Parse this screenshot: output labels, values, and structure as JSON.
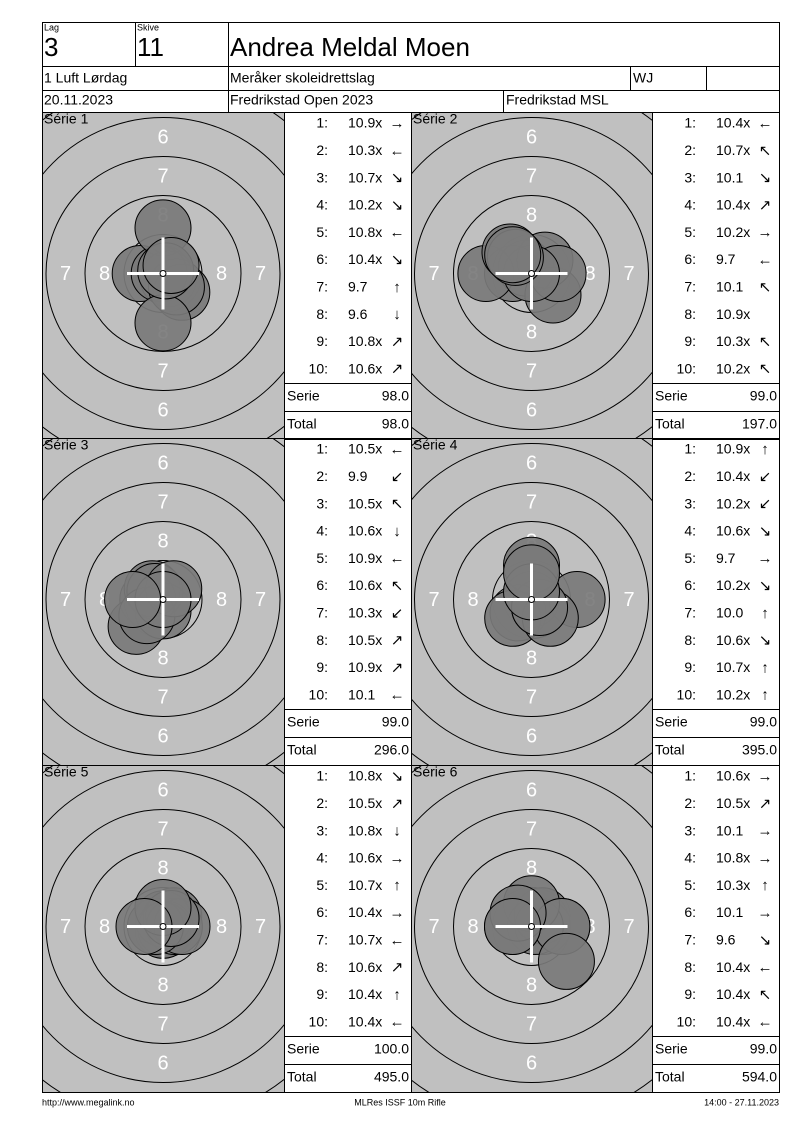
{
  "header": {
    "lag_label": "Lag",
    "lag": "3",
    "skive_label": "Skive",
    "skive": "11",
    "name": "Andrea Meldal Moen",
    "class": "1 Luft Lørdag",
    "club": "Meråker skoleidrettslag",
    "category": "WJ",
    "date": "20.11.2023",
    "event": "Fredrikstad Open 2023",
    "venue": "Fredrikstad MSL"
  },
  "ring_labels": [
    "8",
    "7",
    "6"
  ],
  "labels": {
    "serie": "Serie",
    "total": "Total"
  },
  "series": [
    {
      "name": "Série 1",
      "serie": "98.0",
      "total": "98.0",
      "shots": [
        {
          "no": "1:",
          "score": "10.9x",
          "dir": "→"
        },
        {
          "no": "2:",
          "score": "10.3x",
          "dir": "←"
        },
        {
          "no": "3:",
          "score": "10.7x",
          "dir": "↘"
        },
        {
          "no": "4:",
          "score": "10.2x",
          "dir": "↘"
        },
        {
          "no": "5:",
          "score": "10.8x",
          "dir": "←"
        },
        {
          "no": "6:",
          "score": "10.4x",
          "dir": "↘"
        },
        {
          "no": "7:",
          "score": "9.7",
          "dir": "↑"
        },
        {
          "no": "8:",
          "score": "9.6",
          "dir": "↓"
        },
        {
          "no": "9:",
          "score": "10.8x",
          "dir": "↗"
        },
        {
          "no": "10:",
          "score": "10.6x",
          "dir": "↗"
        }
      ]
    },
    {
      "name": "Série 2",
      "serie": "99.0",
      "total": "197.0",
      "shots": [
        {
          "no": "1:",
          "score": "10.4x",
          "dir": "←"
        },
        {
          "no": "2:",
          "score": "10.7x",
          "dir": "↖"
        },
        {
          "no": "3:",
          "score": "10.1",
          "dir": "↘"
        },
        {
          "no": "4:",
          "score": "10.4x",
          "dir": "↗"
        },
        {
          "no": "5:",
          "score": "10.2x",
          "dir": "→"
        },
        {
          "no": "6:",
          "score": "9.7",
          "dir": "←"
        },
        {
          "no": "7:",
          "score": "10.1",
          "dir": "↖"
        },
        {
          "no": "8:",
          "score": "10.9x"
        },
        {
          "no": "9:",
          "score": "10.3x",
          "dir": "↖"
        },
        {
          "no": "10:",
          "score": "10.2x",
          "dir": "↖"
        }
      ]
    },
    {
      "name": "Série 3",
      "serie": "99.0",
      "total": "296.0",
      "shots": [
        {
          "no": "1:",
          "score": "10.5x",
          "dir": "←"
        },
        {
          "no": "2:",
          "score": "9.9",
          "dir": "↙"
        },
        {
          "no": "3:",
          "score": "10.5x",
          "dir": "↖"
        },
        {
          "no": "4:",
          "score": "10.6x",
          "dir": "↓"
        },
        {
          "no": "5:",
          "score": "10.9x",
          "dir": "←"
        },
        {
          "no": "6:",
          "score": "10.6x",
          "dir": "↖"
        },
        {
          "no": "7:",
          "score": "10.3x",
          "dir": "↙"
        },
        {
          "no": "8:",
          "score": "10.5x",
          "dir": "↗"
        },
        {
          "no": "9:",
          "score": "10.9x",
          "dir": "↗"
        },
        {
          "no": "10:",
          "score": "10.1",
          "dir": "←"
        }
      ]
    },
    {
      "name": "Série 4",
      "serie": "99.0",
      "total": "395.0",
      "shots": [
        {
          "no": "1:",
          "score": "10.9x",
          "dir": "↑"
        },
        {
          "no": "2:",
          "score": "10.4x",
          "dir": "↙"
        },
        {
          "no": "3:",
          "score": "10.2x",
          "dir": "↙"
        },
        {
          "no": "4:",
          "score": "10.6x",
          "dir": "↘"
        },
        {
          "no": "5:",
          "score": "9.7",
          "dir": "→"
        },
        {
          "no": "6:",
          "score": "10.2x",
          "dir": "↘"
        },
        {
          "no": "7:",
          "score": "10.0",
          "dir": "↑"
        },
        {
          "no": "8:",
          "score": "10.6x",
          "dir": "↘"
        },
        {
          "no": "9:",
          "score": "10.7x",
          "dir": "↑"
        },
        {
          "no": "10:",
          "score": "10.2x",
          "dir": "↑"
        }
      ]
    },
    {
      "name": "Série 5",
      "serie": "100.0",
      "total": "495.0",
      "shots": [
        {
          "no": "1:",
          "score": "10.8x",
          "dir": "↘"
        },
        {
          "no": "2:",
          "score": "10.5x",
          "dir": "↗"
        },
        {
          "no": "3:",
          "score": "10.8x",
          "dir": "↓"
        },
        {
          "no": "4:",
          "score": "10.6x",
          "dir": "→"
        },
        {
          "no": "5:",
          "score": "10.7x",
          "dir": "↑"
        },
        {
          "no": "6:",
          "score": "10.4x",
          "dir": "→"
        },
        {
          "no": "7:",
          "score": "10.7x",
          "dir": "←"
        },
        {
          "no": "8:",
          "score": "10.6x",
          "dir": "↗"
        },
        {
          "no": "9:",
          "score": "10.4x",
          "dir": "↑"
        },
        {
          "no": "10:",
          "score": "10.4x",
          "dir": "←"
        }
      ]
    },
    {
      "name": "Série 6",
      "serie": "99.0",
      "total": "594.0",
      "shots": [
        {
          "no": "1:",
          "score": "10.6x",
          "dir": "→"
        },
        {
          "no": "2:",
          "score": "10.5x",
          "dir": "↗"
        },
        {
          "no": "3:",
          "score": "10.1",
          "dir": "→"
        },
        {
          "no": "4:",
          "score": "10.8x",
          "dir": "→"
        },
        {
          "no": "5:",
          "score": "10.3x",
          "dir": "↑"
        },
        {
          "no": "6:",
          "score": "10.1",
          "dir": "→"
        },
        {
          "no": "7:",
          "score": "9.6",
          "dir": "↘"
        },
        {
          "no": "8:",
          "score": "10.4x",
          "dir": "←"
        },
        {
          "no": "9:",
          "score": "10.4x",
          "dir": "↖"
        },
        {
          "no": "10:",
          "score": "10.4x",
          "dir": "←"
        }
      ]
    }
  ],
  "footer": {
    "url": "http://www.megalink.no",
    "program": "MLRes ISSF 10m Rifle",
    "timestamp": "14:00 - 27.11.2023"
  }
}
